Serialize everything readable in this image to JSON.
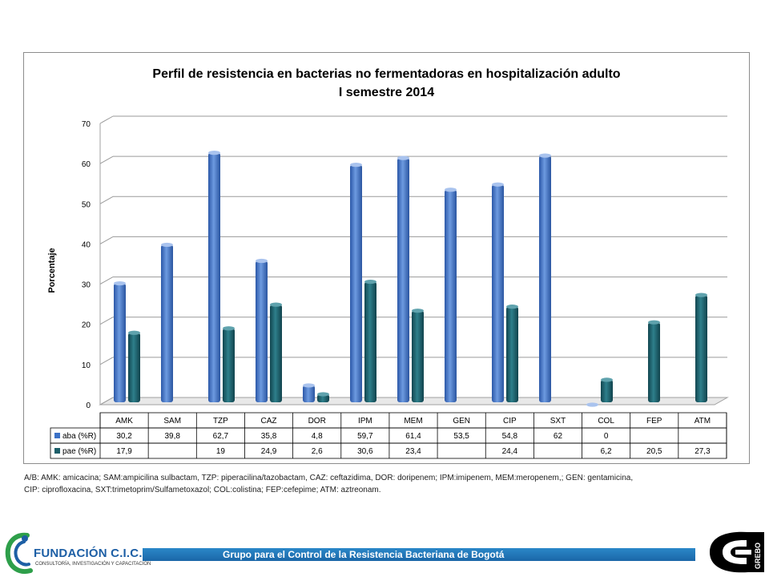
{
  "chart_data": {
    "type": "bar",
    "title": "Perfil de resistencia en bacterias no fermentadoras en hospitalización adulto",
    "subtitle": "I semestre 2014",
    "ylabel": "Porcentaje",
    "xlabel": "",
    "ylim": [
      0,
      70
    ],
    "yticks": [
      "0",
      "10",
      "20",
      "30",
      "40",
      "50",
      "60",
      "70"
    ],
    "grid": true,
    "categories": [
      "AMK",
      "SAM",
      "TZP",
      "CAZ",
      "DOR",
      "IPM",
      "MEM",
      "GEN",
      "CIP",
      "SXT",
      "COL",
      "FEP",
      "ATM"
    ],
    "series": [
      {
        "name": "aba (%R)",
        "color": "#3c72c7",
        "values": [
          30.2,
          39.8,
          62.7,
          35.8,
          4.8,
          59.7,
          61.4,
          53.5,
          54.8,
          62,
          0,
          null,
          null
        ],
        "labels": [
          "30,2",
          "39,8",
          "62,7",
          "35,8",
          "4,8",
          "59,7",
          "61,4",
          "53,5",
          "54,8",
          "62",
          "0",
          "",
          ""
        ]
      },
      {
        "name": "pae (%R)",
        "color": "#1c5f6a",
        "values": [
          17.9,
          null,
          19,
          24.9,
          2.6,
          30.6,
          23.4,
          null,
          24.4,
          null,
          6.2,
          20.5,
          27.3
        ],
        "labels": [
          "17,9",
          "",
          "19",
          "24,9",
          "2,6",
          "30,6",
          "23,4",
          "",
          "24,4",
          "",
          "6,2",
          "20,5",
          "27,3"
        ]
      }
    ]
  },
  "footnote": {
    "line1": "A/B: AMK: amicacina; SAM:ampicilina sulbactam, TZP: piperacilina/tazobactam, CAZ: ceftazidima, DOR: doripenem;  IPM:imipenem, MEM:meropenem,; GEN: gentamicina,",
    "line2": "CIP: ciprofloxacina, SXT:trimetoprim/Sulfametoxazol; COL:colistina; FEP:cefepime; ATM: aztreonam."
  },
  "footer": {
    "org_name": "FUNDACIÓN C.I.C. SALUD",
    "org_tagline": "CONSULTORÍA, INVESTIGACIÓN Y CAPACITACIÓN",
    "band_text": "Grupo para el Control de la Resistencia Bacteriana de Bogotá",
    "right_logo_text": "GREBO"
  }
}
